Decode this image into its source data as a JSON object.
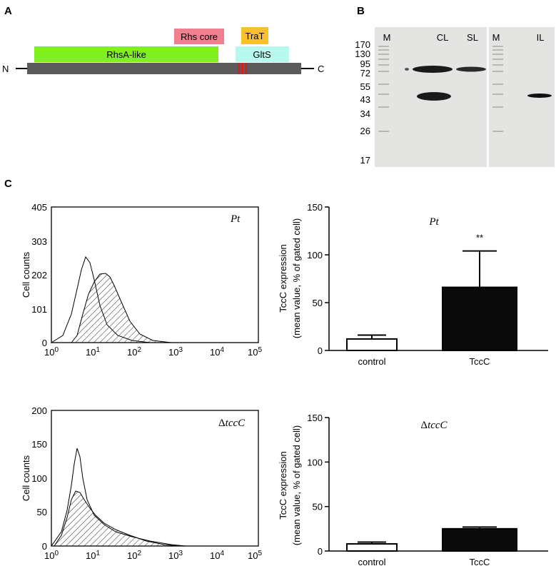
{
  "panels": {
    "A": "A",
    "B": "B",
    "C": "C"
  },
  "domain_map": {
    "n_term": "N",
    "c_term": "C",
    "rhsa": "RhsA-like",
    "rhs_core": "Rhs core",
    "trat": "TraT",
    "glts": "GltS",
    "colors": {
      "rhsa": "#80f020",
      "rhs_core": "#f08090",
      "trat": "#f8c030",
      "glts": "#b8f8ee",
      "backbone": "#5b5b5b",
      "motif": "#d02020"
    }
  },
  "blot": {
    "lane_labels": [
      "M",
      "CL",
      "SL",
      "M",
      "IL"
    ],
    "mw_markers": [
      "170",
      "130",
      "95",
      "72",
      "55",
      "43",
      "34",
      "26",
      "17"
    ]
  },
  "flow_top": {
    "ylabel": "Cell counts",
    "y_ticks": [
      "405",
      "303",
      "202",
      "101",
      "0"
    ],
    "x_ticks": [
      "0",
      "1",
      "2",
      "3",
      "4",
      "5"
    ],
    "x_base": "10",
    "tag": "Pt"
  },
  "flow_bottom": {
    "ylabel": "Cell counts",
    "y_ticks": [
      "200",
      "150",
      "100",
      "50",
      "0"
    ],
    "x_ticks": [
      "0",
      "1",
      "2",
      "3",
      "4",
      "5"
    ],
    "x_base": "10",
    "tag_prefix": "Δ",
    "tag": "tccC"
  },
  "chart_data": [
    {
      "type": "bar",
      "title": "Pt",
      "ylabel": "TccC expression",
      "ylabel2": "(mean value, % of gated cell)",
      "categories": [
        "control",
        "TccC"
      ],
      "values": [
        12,
        66
      ],
      "errors": [
        4,
        38
      ],
      "significance": "**",
      "ylim": [
        0,
        150
      ],
      "yticks": [
        "0",
        "50",
        "100",
        "150"
      ]
    },
    {
      "type": "bar",
      "title_prefix": "Δ",
      "title": "tccC",
      "ylabel": "TccC expression",
      "ylabel2": "(mean value, % of gated cell)",
      "categories": [
        "control",
        "TccC"
      ],
      "values": [
        8,
        25
      ],
      "errors": [
        2,
        2
      ],
      "ylim": [
        0,
        150
      ],
      "yticks": [
        "0",
        "50",
        "100",
        "150"
      ]
    }
  ]
}
